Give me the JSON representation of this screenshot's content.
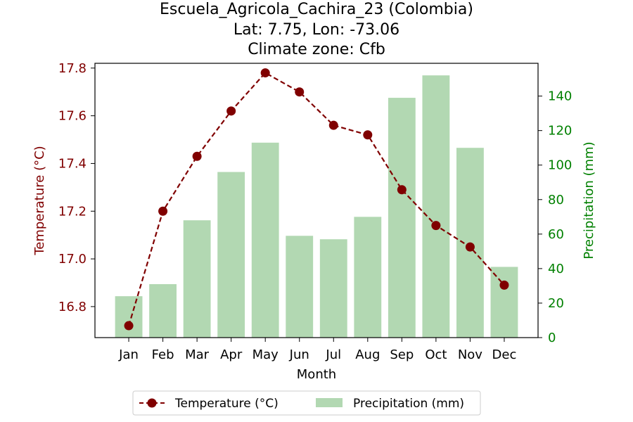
{
  "chart_data": {
    "type": "bar+line",
    "title_lines": [
      "Escuela_Agricola_Cachira_23 (Colombia)",
      "Lat: 7.75, Lon: -73.06",
      "Climate zone: Cfb"
    ],
    "xlabel": "Month",
    "categories": [
      "Jan",
      "Feb",
      "Mar",
      "Apr",
      "May",
      "Jun",
      "Jul",
      "Aug",
      "Sep",
      "Oct",
      "Nov",
      "Dec"
    ],
    "temperature": {
      "name": "Temperature (°C)",
      "axis_label": "Temperature (°C)",
      "values": [
        16.72,
        17.2,
        17.43,
        17.62,
        17.78,
        17.7,
        17.56,
        17.52,
        17.29,
        17.14,
        17.05,
        16.89
      ],
      "ylim": [
        16.67,
        17.82
      ],
      "ticks": [
        16.8,
        17.0,
        17.2,
        17.4,
        17.6,
        17.8
      ],
      "color": "#800000",
      "style": "dashed line with circle markers"
    },
    "precipitation": {
      "name": "Precipitation (mm)",
      "axis_label": "Precipitation (mm)",
      "values": [
        24,
        31,
        68,
        96,
        113,
        59,
        57,
        70,
        139,
        152,
        110,
        41
      ],
      "ylim": [
        0,
        159
      ],
      "ticks": [
        0,
        20,
        40,
        60,
        80,
        100,
        120,
        140
      ],
      "color": "#b2d8b2",
      "tick_color": "#008000"
    },
    "legend_position": "bottom-center",
    "grid": false
  }
}
